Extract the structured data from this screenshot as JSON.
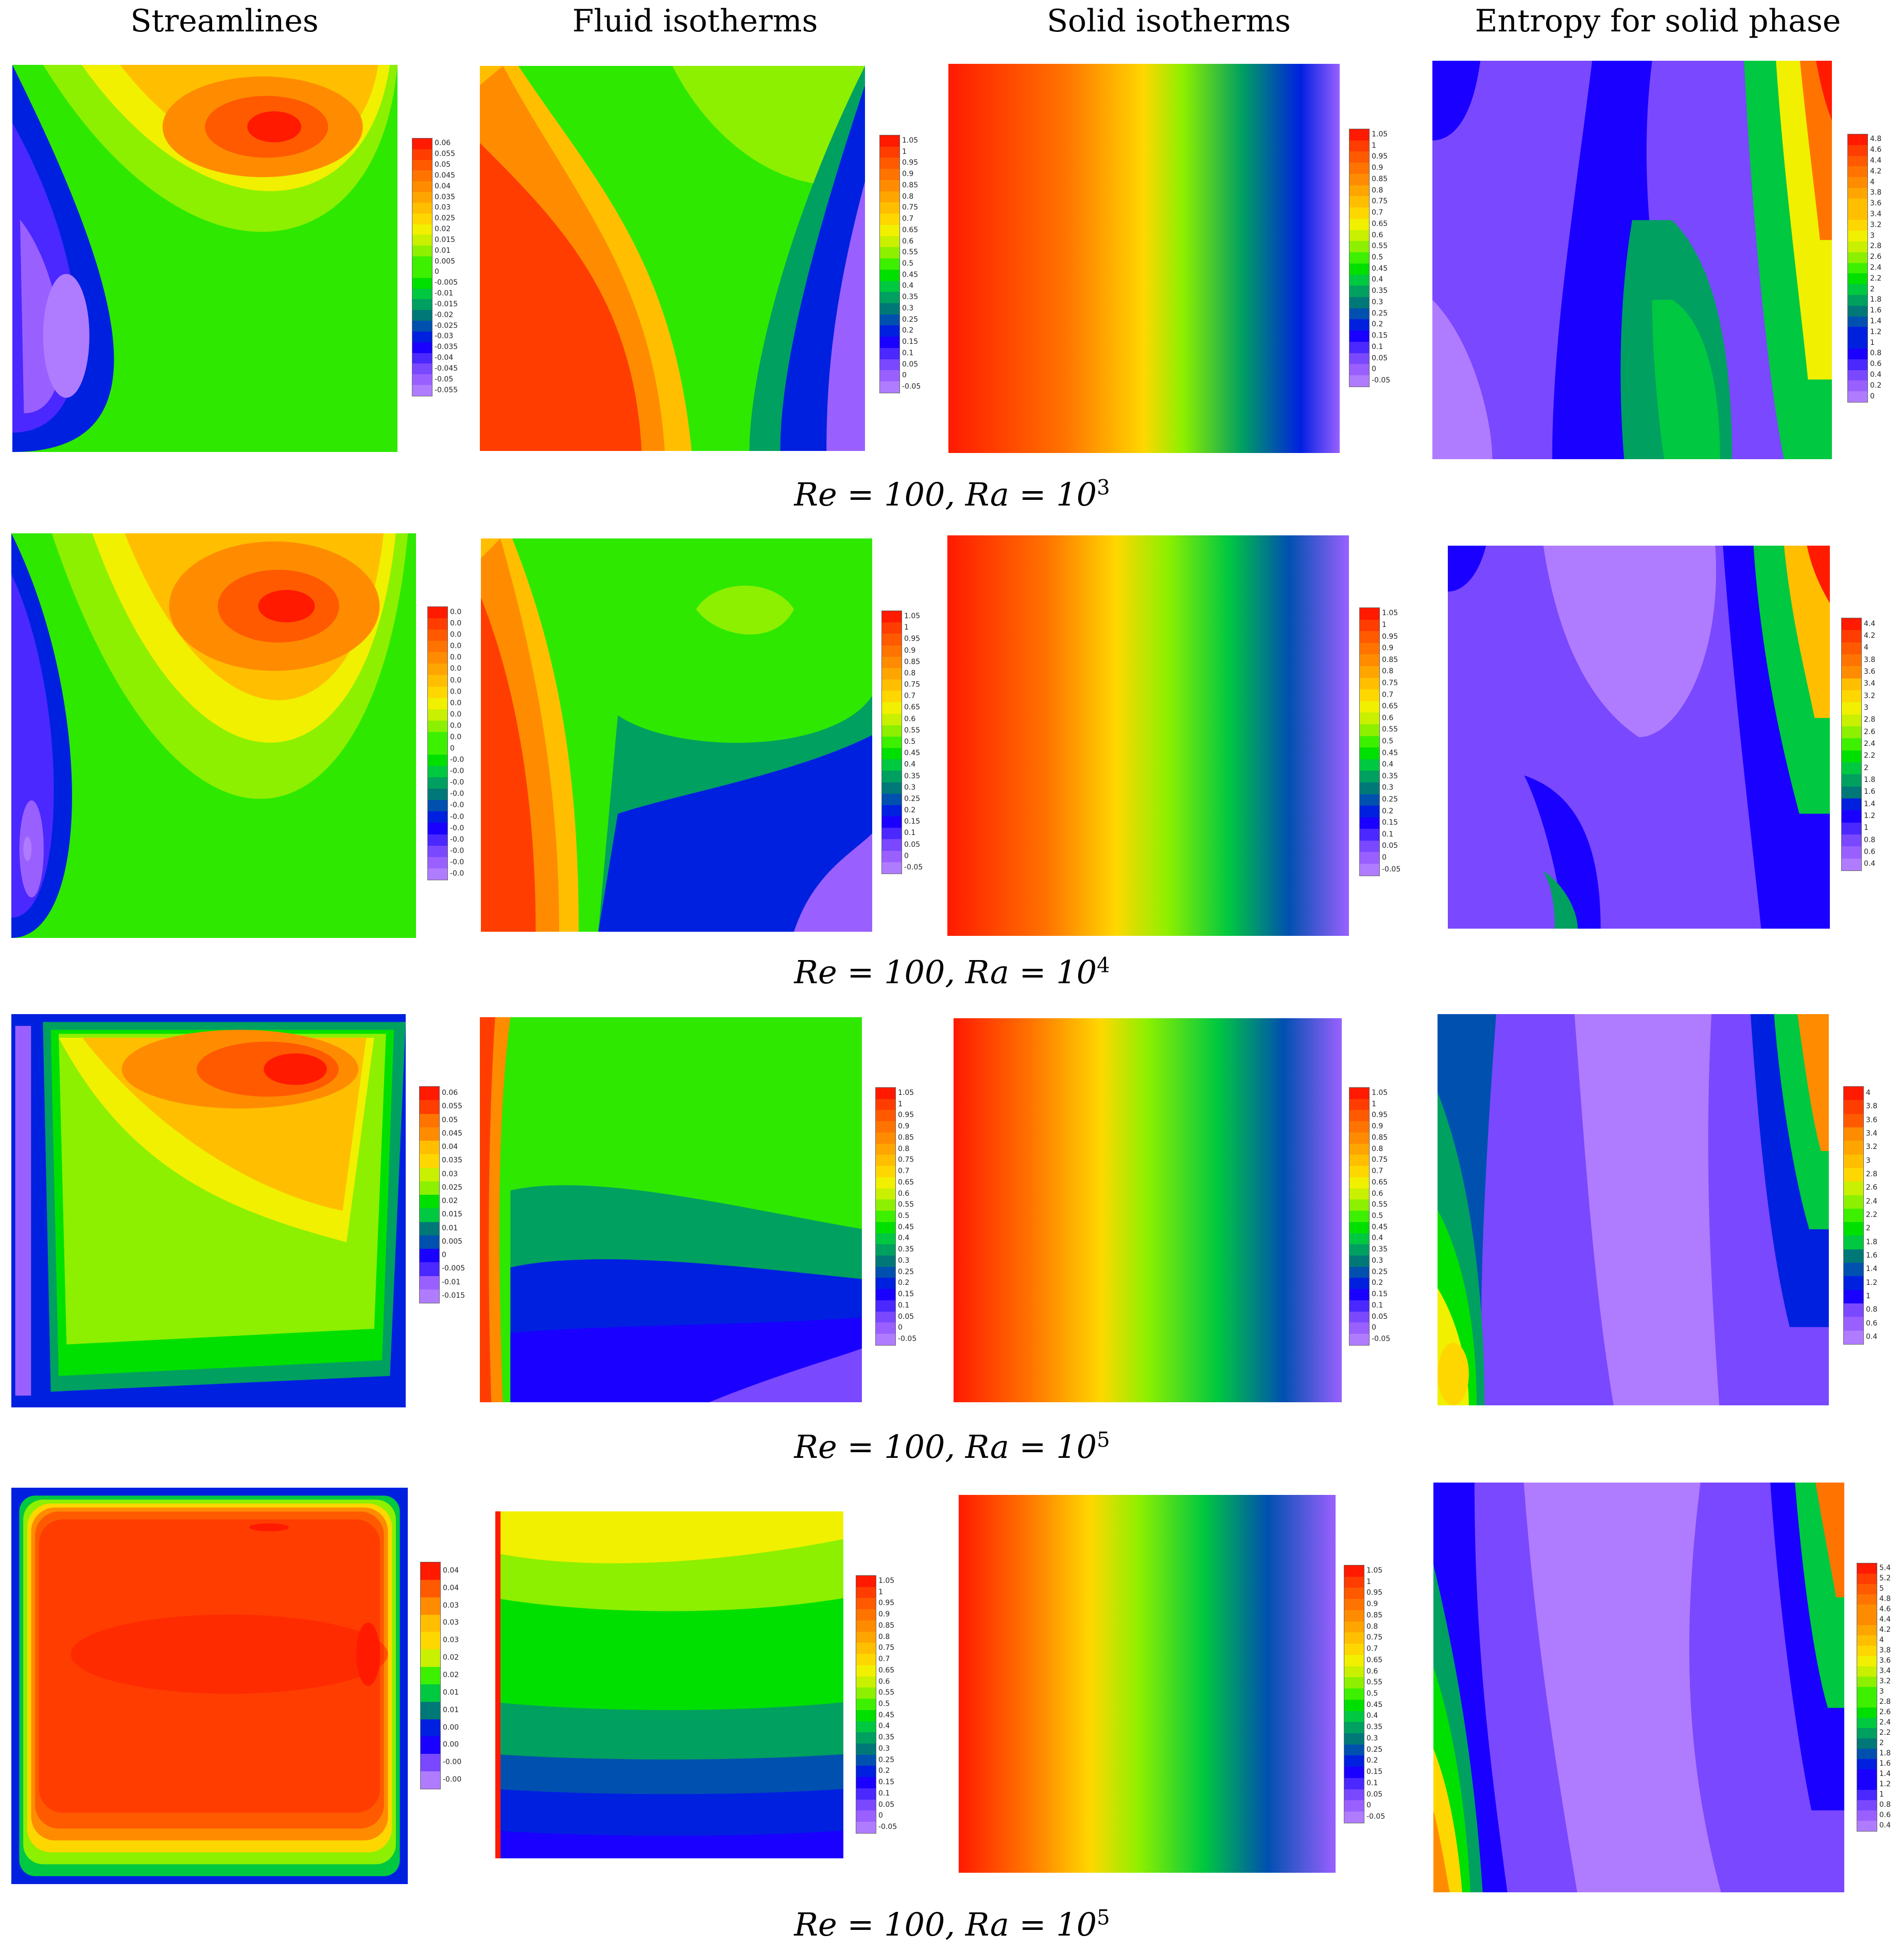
{
  "column_headers": [
    "Streamlines",
    "Fluid isotherms",
    "Solid isotherms",
    "Entropy for solid phase"
  ],
  "row_captions": [
    {
      "base": "Re = 100, Ra = 10",
      "exp": "3"
    },
    {
      "base": "Re = 100, Ra = 10",
      "exp": "4"
    },
    {
      "base": "Re = 100, Ra = 10",
      "exp": "5"
    },
    {
      "base": "Re = 100, Ra = 10",
      "exp": "5"
    }
  ],
  "colorbars": {
    "streamlines": [
      [
        "0.06",
        "0.055",
        "0.05",
        "0.045",
        "0.04",
        "0.035",
        "0.03",
        "0.025",
        "0.02",
        "0.015",
        "0.01",
        "0.005",
        "0",
        "-0.005",
        "-0.01",
        "-0.015",
        "-0.02",
        "-0.025",
        "-0.03",
        "-0.035",
        "-0.04",
        "-0.045",
        "-0.05",
        "-0.055"
      ],
      [
        "0.0",
        "0.0",
        "0.0",
        "0.0",
        "0.0",
        "0.0",
        "0.0",
        "0.0",
        "0.0",
        "0.0",
        "0.0",
        "0.0",
        "0",
        "-0.0",
        "-0.0",
        "-0.0",
        "-0.0",
        "-0.0",
        "-0.0",
        "-0.0",
        "-0.0",
        "-0.0",
        "-0.0",
        "-0.0"
      ],
      [
        "0.06",
        "0.055",
        "0.05",
        "0.045",
        "0.04",
        "0.035",
        "0.03",
        "0.025",
        "0.02",
        "0.015",
        "0.01",
        "0.005",
        "0",
        "-0.005",
        "-0.01",
        "-0.015"
      ],
      [
        "0.04",
        "0.04",
        "0.03",
        "0.03",
        "0.03",
        "0.02",
        "0.02",
        "0.01",
        "0.01",
        "0.00",
        "0.00",
        "-0.00",
        "-0.00"
      ]
    ],
    "isotherms": [
      "1.05",
      "1",
      "0.95",
      "0.9",
      "0.85",
      "0.8",
      "0.75",
      "0.7",
      "0.65",
      "0.6",
      "0.55",
      "0.5",
      "0.45",
      "0.4",
      "0.35",
      "0.3",
      "0.25",
      "0.2",
      "0.15",
      "0.1",
      "0.05",
      "0",
      "-0.05"
    ],
    "entropy": [
      [
        "4.8",
        "4.6",
        "4.4",
        "4.2",
        "4",
        "3.8",
        "3.6",
        "3.4",
        "3.2",
        "3",
        "2.8",
        "2.6",
        "2.4",
        "2.2",
        "2",
        "1.8",
        "1.6",
        "1.4",
        "1.2",
        "1",
        "0.8",
        "0.6",
        "0.4",
        "0.2",
        "0"
      ],
      [
        "4.4",
        "4.2",
        "4",
        "3.8",
        "3.6",
        "3.4",
        "3.2",
        "3",
        "2.8",
        "2.6",
        "2.4",
        "2.2",
        "2",
        "1.8",
        "1.6",
        "1.4",
        "1.2",
        "1",
        "0.8",
        "0.6",
        "0.4"
      ],
      [
        "4",
        "3.8",
        "3.6",
        "3.4",
        "3.2",
        "3",
        "2.8",
        "2.6",
        "2.4",
        "2.2",
        "2",
        "1.8",
        "1.6",
        "1.4",
        "1.2",
        "1",
        "0.8",
        "0.6",
        "0.4"
      ],
      [
        "5.4",
        "5.2",
        "5",
        "4.8",
        "4.6",
        "4.4",
        "4.2",
        "4",
        "3.8",
        "3.6",
        "3.4",
        "3.2",
        "3",
        "2.8",
        "2.6",
        "2.4",
        "2.2",
        "2",
        "1.8",
        "1.6",
        "1.4",
        "1.2",
        "1",
        "0.8",
        "0.6",
        "0.4"
      ]
    ]
  },
  "palette": [
    "#ff1a00",
    "#ff3d00",
    "#ff5a00",
    "#ff7400",
    "#ff8c00",
    "#ffa500",
    "#ffbf00",
    "#ffd700",
    "#f0f000",
    "#c8f000",
    "#8cf000",
    "#3cf000",
    "#00e000",
    "#00c840",
    "#00a060",
    "#007878",
    "#0050b0",
    "#0020e0",
    "#1a00ff",
    "#4a28ff",
    "#7a48ff",
    "#9a60ff",
    "#b07cff"
  ],
  "labels": {
    "re": "Re",
    "ra": "Ra"
  }
}
